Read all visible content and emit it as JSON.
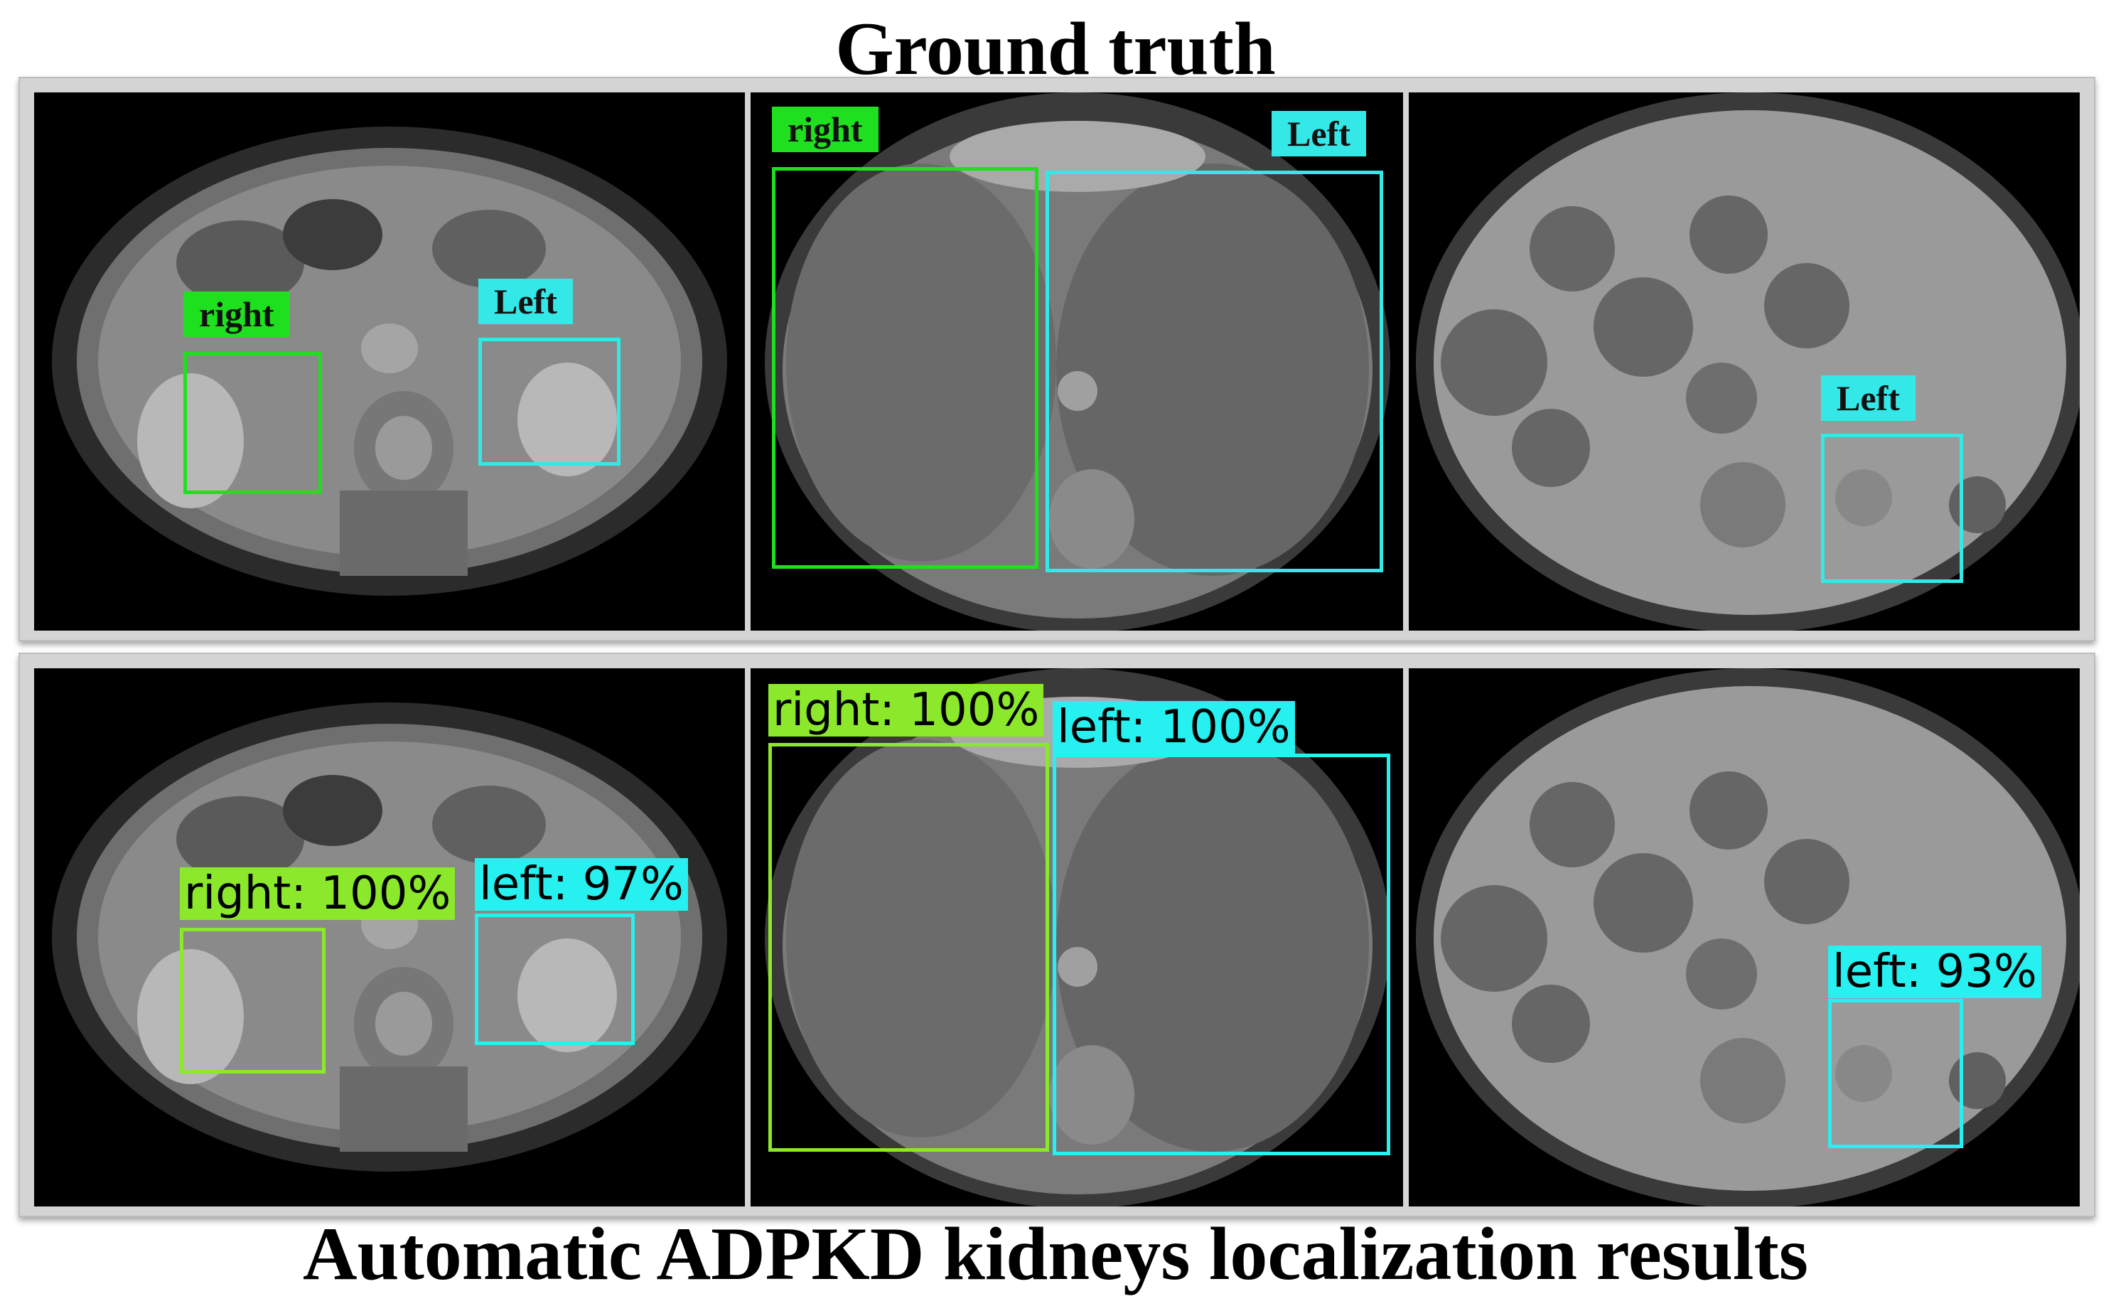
{
  "titles": {
    "top": "Ground truth",
    "bottom": "Automatic ADPKD kidneys localization results"
  },
  "colors": {
    "gt_right": "#1fe01f",
    "gt_left": "#34e8e8",
    "pred_right": "#8be82a",
    "pred_left": "#26f0f0",
    "panel_bg": "#000000",
    "frame": "#d4d4d4"
  },
  "ground_truth": {
    "p1": {
      "right": "right",
      "left": "Left"
    },
    "p2": {
      "right": "right",
      "left": "Left"
    },
    "p3": {
      "left": "Left"
    }
  },
  "predictions": {
    "p1": {
      "right": "right: 100%",
      "left": "left: 97%"
    },
    "p2": {
      "right": "right: 100%",
      "left": "left: 100%"
    },
    "p3": {
      "left": "left: 93%"
    }
  }
}
